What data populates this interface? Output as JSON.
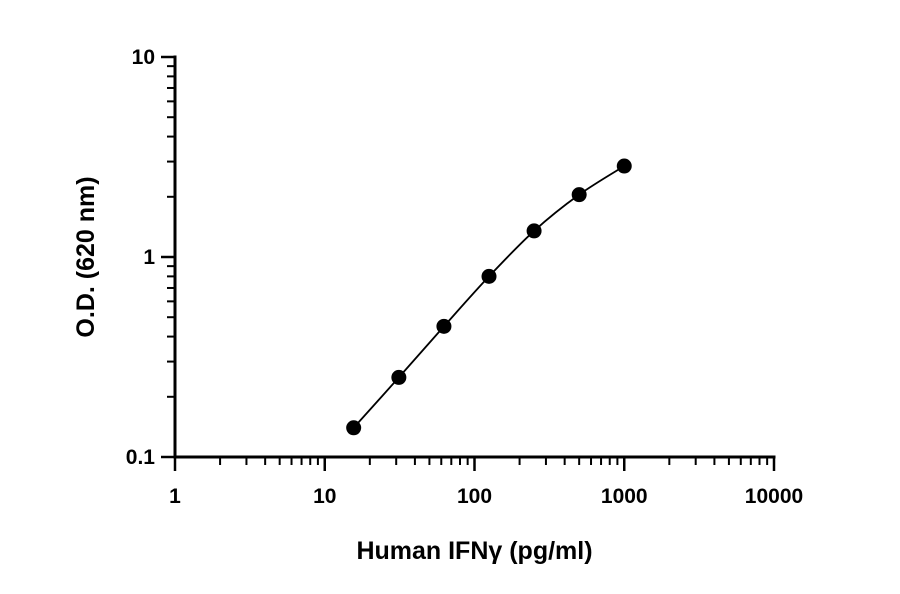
{
  "chart_data": {
    "type": "scatter",
    "xlabel": "Human IFNγ (pg/ml)",
    "ylabel": "O.D. (620 nm)",
    "x_scale": "log",
    "y_scale": "log",
    "xlim": [
      1,
      10000
    ],
    "ylim": [
      0.1,
      10
    ],
    "x_ticks": [
      {
        "value": 1,
        "label": "1"
      },
      {
        "value": 10,
        "label": "10"
      },
      {
        "value": 100,
        "label": "100"
      },
      {
        "value": 1000,
        "label": "1000"
      },
      {
        "value": 10000,
        "label": "10000"
      }
    ],
    "y_ticks": [
      {
        "value": 0.1,
        "label": "0.1"
      },
      {
        "value": 1,
        "label": "1"
      },
      {
        "value": 10,
        "label": "10"
      }
    ],
    "grid": false,
    "fit_line": true,
    "series": [
      {
        "x": [
          15.6,
          31.25,
          62.5,
          125,
          250,
          500,
          1000
        ],
        "y": [
          0.14,
          0.25,
          0.45,
          0.8,
          1.35,
          2.05,
          2.85
        ]
      }
    ],
    "colors": {
      "marker": "#000000",
      "line": "#000000",
      "axis": "#000000"
    }
  }
}
